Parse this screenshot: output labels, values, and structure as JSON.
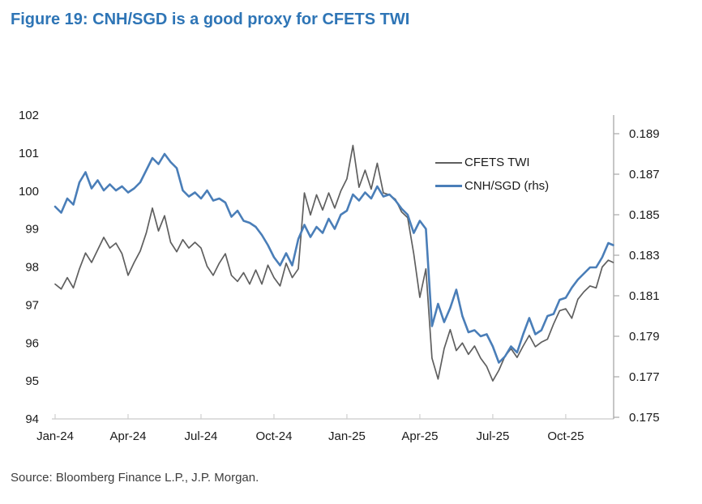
{
  "figure": {
    "title": "Figure 19: CNH/SGD is a good proxy for CFETS TWI",
    "source": "Source: Bloomberg Finance L.P., J.P. Morgan."
  },
  "chart_data": {
    "type": "line",
    "title": "Figure 19: CNH/SGD is a good proxy for CFETS TWI",
    "grid": "off",
    "legend_position": "upper-right-inside",
    "legend": [
      {
        "label": "CFETS TWI",
        "color": "#5f5f5f"
      },
      {
        "label": "CNH/SGD (rhs)",
        "color": "#4a7eb8"
      }
    ],
    "x_unit": "months since Jan-2024",
    "x_range": [
      0,
      22.97
    ],
    "x_axis": {
      "tick_labels": [
        "Jan-24",
        "Apr-24",
        "Jul-24",
        "Oct-24",
        "Jan-25",
        "Apr-25",
        "Jul-25",
        "Oct-25"
      ],
      "tick_positions": [
        0,
        3,
        6,
        9,
        12,
        15,
        18,
        21
      ]
    },
    "left_axis": {
      "label": "CFETS TWI",
      "ticks": [
        94,
        95,
        96,
        97,
        98,
        99,
        100,
        101,
        102
      ],
      "range": [
        94,
        102
      ]
    },
    "right_axis": {
      "label": "CNH/SGD",
      "ticks": [
        0.175,
        0.177,
        0.179,
        0.181,
        0.183,
        0.185,
        0.187,
        0.189
      ],
      "range": [
        0.17492,
        0.18992
      ]
    },
    "x": [
      0,
      0.25,
      0.5,
      0.75,
      1,
      1.25,
      1.5,
      1.75,
      2,
      2.25,
      2.5,
      2.75,
      3,
      3.25,
      3.5,
      3.75,
      4,
      4.25,
      4.5,
      4.75,
      5,
      5.25,
      5.5,
      5.75,
      6,
      6.25,
      6.5,
      6.75,
      7,
      7.25,
      7.5,
      7.75,
      8,
      8.25,
      8.5,
      8.75,
      9,
      9.25,
      9.5,
      9.75,
      10,
      10.25,
      10.5,
      10.75,
      11,
      11.25,
      11.5,
      11.75,
      12,
      12.25,
      12.5,
      12.75,
      13,
      13.25,
      13.5,
      13.75,
      14,
      14.25,
      14.5,
      14.75,
      15,
      15.25,
      15.5,
      15.75,
      16,
      16.25,
      16.5,
      16.75,
      17,
      17.25,
      17.5,
      17.75,
      18,
      18.25,
      18.5,
      18.75,
      19,
      19.25,
      19.5,
      19.75,
      20,
      20.25,
      20.5,
      20.75,
      21,
      21.25,
      21.5,
      21.75,
      22,
      22.25,
      22.5,
      22.75,
      22.95
    ],
    "series": [
      {
        "name": "CFETS TWI",
        "axis": "left",
        "color": "#5f5f5f",
        "values": [
          97.55,
          97.42,
          97.72,
          97.45,
          97.95,
          98.37,
          98.12,
          98.45,
          98.78,
          98.5,
          98.63,
          98.35,
          97.78,
          98.12,
          98.42,
          98.9,
          99.55,
          98.95,
          99.35,
          98.65,
          98.4,
          98.72,
          98.5,
          98.65,
          98.5,
          98.02,
          97.78,
          98.1,
          98.35,
          97.78,
          97.62,
          97.85,
          97.55,
          97.92,
          97.55,
          98.05,
          97.72,
          97.5,
          98.1,
          97.72,
          97.95,
          99.95,
          99.37,
          99.9,
          99.5,
          99.95,
          99.55,
          100.0,
          100.32,
          101.2,
          100.1,
          100.55,
          100.05,
          100.73,
          99.95,
          99.9,
          99.78,
          99.45,
          99.3,
          98.35,
          97.2,
          97.95,
          95.6,
          95.05,
          95.85,
          96.35,
          95.8,
          96.0,
          95.7,
          95.92,
          95.6,
          95.38,
          95.0,
          95.28,
          95.65,
          95.85,
          95.62,
          95.92,
          96.2,
          95.9,
          96.02,
          96.1,
          96.5,
          96.85,
          96.9,
          96.65,
          97.15,
          97.35,
          97.5,
          97.45,
          98.0,
          98.18,
          98.12
        ]
      },
      {
        "name": "CNH/SGD (rhs)",
        "axis": "right",
        "color": "#4a7eb8",
        "values": [
          0.1854,
          0.1851,
          0.1858,
          0.1855,
          0.1866,
          0.1871,
          0.1863,
          0.1867,
          0.1862,
          0.1865,
          0.1862,
          0.1864,
          0.1861,
          0.1863,
          0.1866,
          0.1872,
          0.1878,
          0.1875,
          0.188,
          0.1876,
          0.1873,
          0.1862,
          0.1859,
          0.1861,
          0.1858,
          0.1862,
          0.1857,
          0.1858,
          0.1856,
          0.1849,
          0.1852,
          0.1847,
          0.1846,
          0.1844,
          0.184,
          0.1835,
          0.1829,
          0.1825,
          0.1831,
          0.1825,
          0.1838,
          0.1845,
          0.1839,
          0.1844,
          0.1841,
          0.1848,
          0.1843,
          0.185,
          0.1852,
          0.186,
          0.1857,
          0.1861,
          0.1858,
          0.1864,
          0.1859,
          0.186,
          0.1857,
          0.1853,
          0.185,
          0.1841,
          0.1847,
          0.1843,
          0.1795,
          0.1806,
          0.1797,
          0.1804,
          0.1813,
          0.18,
          0.1792,
          0.1793,
          0.179,
          0.1791,
          0.1785,
          0.1777,
          0.178,
          0.1785,
          0.1782,
          0.1791,
          0.1799,
          0.1791,
          0.1793,
          0.18,
          0.1801,
          0.1808,
          0.1809,
          0.1814,
          0.1818,
          0.1821,
          0.1824,
          0.1824,
          0.1829,
          0.1836,
          0.1835
        ]
      }
    ]
  }
}
